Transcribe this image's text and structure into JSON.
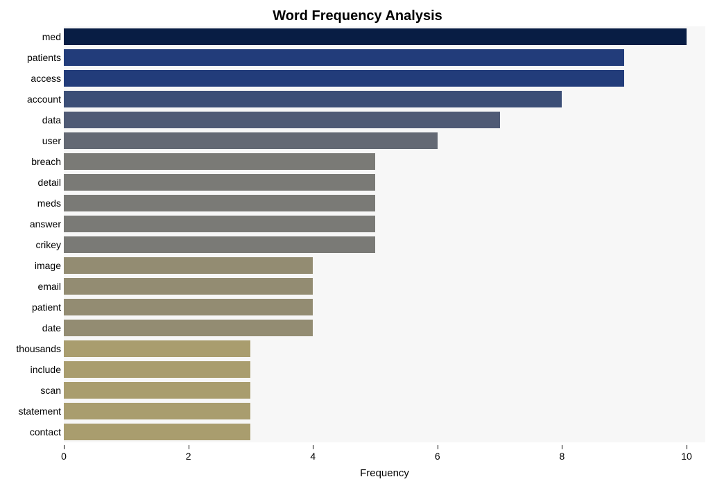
{
  "chart": {
    "type": "bar-horizontal",
    "title": "Word Frequency Analysis",
    "title_fontsize": 20,
    "title_fontweight": "bold",
    "xlabel": "Frequency",
    "xlabel_fontsize": 15,
    "background_color": "#ffffff",
    "plot_background_color": "#f7f7f7",
    "band_color": "#ffffff",
    "xlim": [
      0,
      10.3
    ],
    "xticks": [
      0,
      2,
      4,
      6,
      8,
      10
    ],
    "tick_fontsize": 14,
    "ylabel_fontsize": 14,
    "bar_width_ratio": 0.78,
    "categories": [
      "med",
      "patients",
      "access",
      "account",
      "data",
      "user",
      "breach",
      "detail",
      "meds",
      "answer",
      "crikey",
      "image",
      "email",
      "patient",
      "date",
      "thousands",
      "include",
      "scan",
      "statement",
      "contact"
    ],
    "values": [
      10,
      9,
      9,
      8,
      7,
      6,
      5,
      5,
      5,
      5,
      5,
      4,
      4,
      4,
      4,
      3,
      3,
      3,
      3,
      3
    ],
    "bar_colors": [
      "#081d44",
      "#223c7a",
      "#223c7a",
      "#3b4e76",
      "#4f5a75",
      "#646974",
      "#7a7a76",
      "#7a7a76",
      "#7a7a76",
      "#7a7a76",
      "#7a7a76",
      "#938c72",
      "#938c72",
      "#938c72",
      "#938c72",
      "#a99d6e",
      "#a99d6e",
      "#a99d6e",
      "#a99d6e",
      "#a99d6e"
    ]
  }
}
